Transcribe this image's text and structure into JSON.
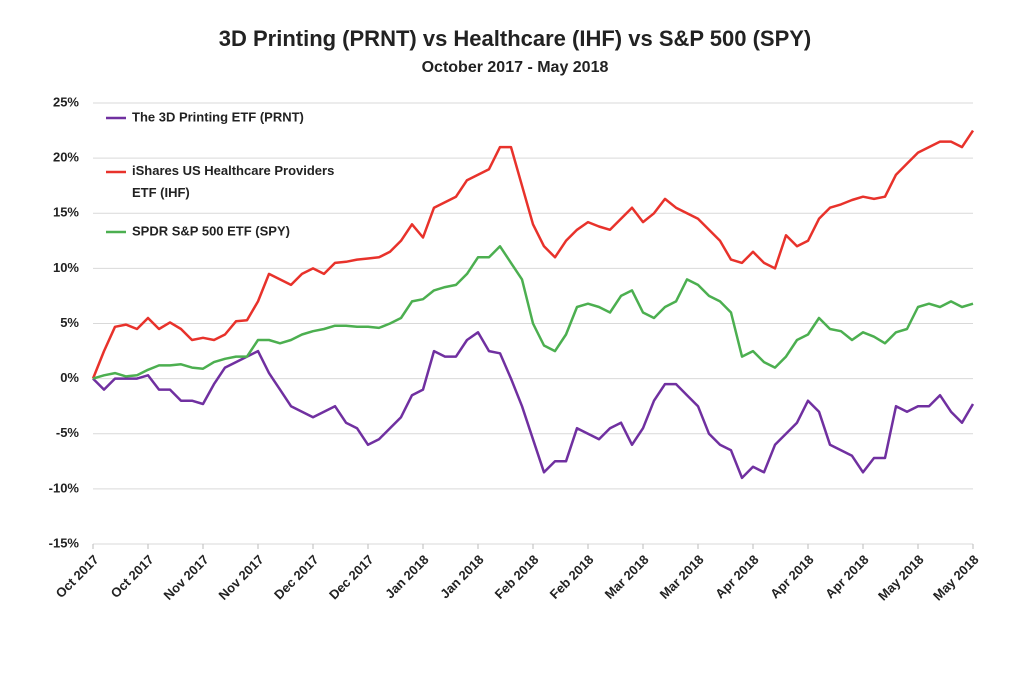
{
  "chart_data": {
    "type": "line",
    "title": "3D Printing (PRNT) vs Healthcare (IHF) vs S&P 500 (SPY)",
    "subtitle": "October 2017 - May 2018",
    "categories": [
      "Oct 2017",
      null,
      null,
      null,
      null,
      "Oct 2017",
      null,
      null,
      null,
      null,
      "Nov 2017",
      null,
      null,
      null,
      null,
      "Nov 2017",
      null,
      null,
      null,
      null,
      "Dec 2017",
      null,
      null,
      null,
      null,
      "Dec 2017",
      null,
      null,
      null,
      null,
      "Jan 2018",
      null,
      null,
      null,
      null,
      "Jan 2018",
      null,
      null,
      null,
      null,
      "Feb 2018",
      null,
      null,
      null,
      null,
      "Feb 2018",
      null,
      null,
      null,
      null,
      "Mar 2018",
      null,
      null,
      null,
      null,
      "Mar 2018",
      null,
      null,
      null,
      null,
      "Apr 2018",
      null,
      null,
      null,
      null,
      "Apr 2018",
      null,
      null,
      null,
      null,
      "Apr 2018",
      null,
      null,
      null,
      null,
      "May 2018",
      null,
      null,
      null,
      null,
      "May 2018"
    ],
    "series": [
      {
        "name": "The 3D Printing ETF (PRNT)",
        "color": "#7030a0",
        "values": [
          0,
          -1,
          0,
          0,
          0,
          0.3,
          -1,
          -1,
          -2,
          -2,
          -2.3,
          -0.5,
          1,
          1.5,
          2,
          2.5,
          0.5,
          -1,
          -2.5,
          -3,
          -3.5,
          -3,
          -2.5,
          -4,
          -4.5,
          -6,
          -5.5,
          -4.5,
          -3.5,
          -1.5,
          -1,
          2.5,
          2,
          2,
          3.5,
          4.2,
          2.5,
          2.3,
          0,
          -2.5,
          -5.5,
          -8.5,
          -7.5,
          -7.5,
          -4.5,
          -5,
          -5.5,
          -4.5,
          -4,
          -6,
          -4.5,
          -2,
          -0.5,
          -0.5,
          -1.5,
          -2.5,
          -5,
          -6,
          -6.5,
          -9,
          -8,
          -8.5,
          -6,
          -5,
          -4,
          -2,
          -3,
          -6,
          -6.5,
          -7,
          -8.5,
          -7.2,
          -7.2,
          -2.5,
          -3,
          -2.5,
          -2.5,
          -1.5,
          -3,
          -4,
          -2.3
        ]
      },
      {
        "name": "iShares US Healthcare Providers ETF (IHF)",
        "color": "#e8322b",
        "values": [
          0,
          2.5,
          4.7,
          4.9,
          4.5,
          5.5,
          4.5,
          5.1,
          4.5,
          3.5,
          3.7,
          3.5,
          4,
          5.2,
          5.3,
          7,
          9.5,
          9,
          8.5,
          9.5,
          10,
          9.5,
          10.5,
          10.6,
          10.8,
          10.9,
          11,
          11.5,
          12.5,
          14,
          12.8,
          15.5,
          16,
          16.5,
          18,
          18.5,
          19,
          21,
          21,
          17.5,
          14,
          12,
          11,
          12.5,
          13.5,
          14.2,
          13.8,
          13.5,
          14.5,
          15.5,
          14.2,
          15,
          16.3,
          15.5,
          15,
          14.5,
          13.5,
          12.5,
          10.8,
          10.5,
          11.5,
          10.5,
          10,
          13,
          12,
          12.5,
          14.5,
          15.5,
          15.8,
          16.2,
          16.5,
          16.3,
          16.5,
          18.5,
          19.5,
          20.5,
          21,
          21.5,
          21.5,
          21,
          22.5
        ]
      },
      {
        "name": "SPDR S&P 500 ETF (SPY)",
        "color": "#4caf50",
        "values": [
          0,
          0.3,
          0.5,
          0.2,
          0.3,
          0.8,
          1.2,
          1.2,
          1.3,
          1,
          0.9,
          1.5,
          1.8,
          2,
          2,
          3.5,
          3.5,
          3.2,
          3.5,
          4,
          4.3,
          4.5,
          4.8,
          4.8,
          4.7,
          4.7,
          4.6,
          5,
          5.5,
          7,
          7.2,
          8,
          8.3,
          8.5,
          9.5,
          11,
          11,
          12,
          10.5,
          9,
          5,
          3,
          2.5,
          4,
          6.5,
          6.8,
          6.5,
          6,
          7.5,
          8,
          6,
          5.5,
          6.5,
          7,
          9,
          8.5,
          7.5,
          7,
          6,
          2,
          2.5,
          1.5,
          1,
          2,
          3.5,
          4,
          5.5,
          4.5,
          4.3,
          3.5,
          4.2,
          3.8,
          3.2,
          4.2,
          4.5,
          6.5,
          6.8,
          6.5,
          7,
          6.5,
          6.8
        ]
      }
    ],
    "ylim": [
      -15,
      25
    ],
    "yticks": [
      {
        "value": -15,
        "label": "-15%"
      },
      {
        "value": -10,
        "label": "-10%"
      },
      {
        "value": -5,
        "label": "-5%"
      },
      {
        "value": 0,
        "label": "0%"
      },
      {
        "value": 5,
        "label": "5%"
      },
      {
        "value": 10,
        "label": "10%"
      },
      {
        "value": 15,
        "label": "15%"
      },
      {
        "value": 20,
        "label": "20%"
      },
      {
        "value": 25,
        "label": "25%"
      }
    ],
    "grid": true,
    "legend": "upper left"
  }
}
